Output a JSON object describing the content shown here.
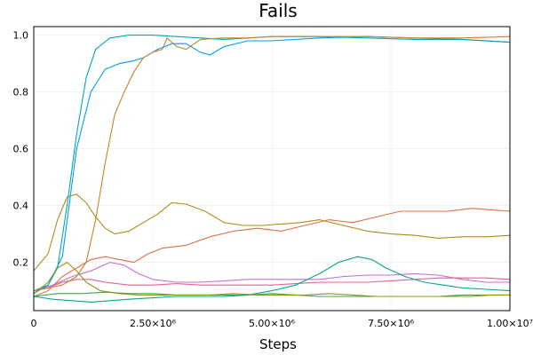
{
  "chart_data": {
    "type": "line",
    "title": "Fails",
    "xlabel": "Steps",
    "ylabel": "",
    "xlim": [
      0,
      10000000
    ],
    "ylim": [
      0.03,
      1.03
    ],
    "grid": true,
    "legend": "none",
    "x_ticks": [
      {
        "value": 0,
        "label": "0"
      },
      {
        "value": 2500000,
        "label": "2.50×10⁶"
      },
      {
        "value": 5000000,
        "label": "5.00×10⁶"
      },
      {
        "value": 7500000,
        "label": "7.50×10⁶"
      },
      {
        "value": 10000000,
        "label": "1.00×10⁷"
      }
    ],
    "y_ticks": [
      {
        "value": 0.2,
        "label": "0.2"
      },
      {
        "value": 0.4,
        "label": "0.4"
      },
      {
        "value": 0.6,
        "label": "0.6"
      },
      {
        "value": 0.8,
        "label": "0.8"
      },
      {
        "value": 1.0,
        "label": "1.0"
      }
    ],
    "series": [
      {
        "color": "#009AFA",
        "points": [
          [
            0,
            0.1
          ],
          [
            300000,
            0.12
          ],
          [
            600000,
            0.22
          ],
          [
            900000,
            0.6
          ],
          [
            1200000,
            0.8
          ],
          [
            1500000,
            0.88
          ],
          [
            1800000,
            0.9
          ],
          [
            2100000,
            0.91
          ],
          [
            2300000,
            0.92
          ],
          [
            2600000,
            0.95
          ],
          [
            2900000,
            0.97
          ],
          [
            3200000,
            0.97
          ],
          [
            3500000,
            0.94
          ],
          [
            3700000,
            0.93
          ],
          [
            4000000,
            0.96
          ],
          [
            4500000,
            0.98
          ],
          [
            5000000,
            0.98
          ],
          [
            6000000,
            0.99
          ],
          [
            7000000,
            0.995
          ],
          [
            8000000,
            0.99
          ],
          [
            9000000,
            0.985
          ],
          [
            10000000,
            0.975
          ]
        ]
      },
      {
        "color": "#E36F47",
        "points": [
          [
            0,
            0.08
          ],
          [
            300000,
            0.1
          ],
          [
            600000,
            0.15
          ],
          [
            900000,
            0.18
          ],
          [
            1200000,
            0.21
          ],
          [
            1500000,
            0.22
          ],
          [
            1800000,
            0.21
          ],
          [
            2100000,
            0.2
          ],
          [
            2400000,
            0.23
          ],
          [
            2700000,
            0.25
          ],
          [
            3200000,
            0.26
          ],
          [
            3700000,
            0.29
          ],
          [
            4200000,
            0.31
          ],
          [
            4700000,
            0.32
          ],
          [
            5200000,
            0.31
          ],
          [
            5700000,
            0.33
          ],
          [
            6200000,
            0.35
          ],
          [
            6700000,
            0.34
          ],
          [
            7200000,
            0.36
          ],
          [
            7700000,
            0.38
          ],
          [
            8200000,
            0.38
          ],
          [
            8700000,
            0.38
          ],
          [
            9200000,
            0.39
          ],
          [
            9600000,
            0.385
          ],
          [
            10000000,
            0.38
          ]
        ]
      },
      {
        "color": "#3EA44E",
        "points": [
          [
            0,
            0.08
          ],
          [
            500000,
            0.09
          ],
          [
            1000000,
            0.09
          ],
          [
            1500000,
            0.095
          ],
          [
            2000000,
            0.09
          ],
          [
            2500000,
            0.09
          ],
          [
            3000000,
            0.085
          ],
          [
            3500000,
            0.085
          ],
          [
            4000000,
            0.085
          ],
          [
            4500000,
            0.085
          ],
          [
            5000000,
            0.09
          ],
          [
            5500000,
            0.085
          ],
          [
            6000000,
            0.08
          ],
          [
            6500000,
            0.08
          ],
          [
            7000000,
            0.08
          ],
          [
            7500000,
            0.08
          ],
          [
            8000000,
            0.08
          ],
          [
            8500000,
            0.08
          ],
          [
            9000000,
            0.085
          ],
          [
            9500000,
            0.085
          ],
          [
            10000000,
            0.085
          ]
        ]
      },
      {
        "color": "#C271D2",
        "points": [
          [
            0,
            0.1
          ],
          [
            400000,
            0.12
          ],
          [
            800000,
            0.15
          ],
          [
            1200000,
            0.17
          ],
          [
            1600000,
            0.2
          ],
          [
            1900000,
            0.19
          ],
          [
            2200000,
            0.16
          ],
          [
            2500000,
            0.14
          ],
          [
            3000000,
            0.13
          ],
          [
            3500000,
            0.13
          ],
          [
            4000000,
            0.135
          ],
          [
            4500000,
            0.14
          ],
          [
            5000000,
            0.14
          ],
          [
            5500000,
            0.14
          ],
          [
            6000000,
            0.14
          ],
          [
            6500000,
            0.15
          ],
          [
            7000000,
            0.155
          ],
          [
            7500000,
            0.155
          ],
          [
            8000000,
            0.16
          ],
          [
            8500000,
            0.155
          ],
          [
            9000000,
            0.14
          ],
          [
            9500000,
            0.13
          ],
          [
            10000000,
            0.13
          ]
        ]
      },
      {
        "color": "#AC8D18",
        "points": [
          [
            0,
            0.17
          ],
          [
            300000,
            0.23
          ],
          [
            500000,
            0.35
          ],
          [
            700000,
            0.43
          ],
          [
            900000,
            0.44
          ],
          [
            1100000,
            0.41
          ],
          [
            1300000,
            0.36
          ],
          [
            1500000,
            0.32
          ],
          [
            1700000,
            0.3
          ],
          [
            2000000,
            0.31
          ],
          [
            2300000,
            0.34
          ],
          [
            2600000,
            0.37
          ],
          [
            2900000,
            0.41
          ],
          [
            3200000,
            0.405
          ],
          [
            3600000,
            0.38
          ],
          [
            4000000,
            0.34
          ],
          [
            4400000,
            0.33
          ],
          [
            4800000,
            0.33
          ],
          [
            5200000,
            0.335
          ],
          [
            5600000,
            0.34
          ],
          [
            6000000,
            0.35
          ],
          [
            6500000,
            0.33
          ],
          [
            7000000,
            0.31
          ],
          [
            7500000,
            0.3
          ],
          [
            8000000,
            0.295
          ],
          [
            8500000,
            0.285
          ],
          [
            9000000,
            0.29
          ],
          [
            9500000,
            0.29
          ],
          [
            10000000,
            0.295
          ]
        ]
      },
      {
        "color": "#00A9AD",
        "points": [
          [
            0,
            0.09
          ],
          [
            300000,
            0.12
          ],
          [
            500000,
            0.18
          ],
          [
            700000,
            0.4
          ],
          [
            900000,
            0.65
          ],
          [
            1100000,
            0.85
          ],
          [
            1300000,
            0.95
          ],
          [
            1600000,
            0.99
          ],
          [
            2000000,
            1.0
          ],
          [
            2500000,
            1.0
          ],
          [
            3000000,
            0.995
          ],
          [
            3500000,
            0.99
          ],
          [
            4000000,
            0.985
          ],
          [
            4500000,
            0.99
          ],
          [
            5000000,
            0.995
          ],
          [
            6000000,
            0.995
          ],
          [
            7000000,
            0.99
          ],
          [
            8000000,
            0.985
          ],
          [
            9000000,
            0.985
          ],
          [
            10000000,
            0.975
          ]
        ]
      },
      {
        "color": "#ED5E93",
        "points": [
          [
            0,
            0.1
          ],
          [
            300000,
            0.11
          ],
          [
            600000,
            0.13
          ],
          [
            900000,
            0.14
          ],
          [
            1200000,
            0.14
          ],
          [
            1500000,
            0.13
          ],
          [
            2000000,
            0.12
          ],
          [
            2500000,
            0.12
          ],
          [
            3000000,
            0.125
          ],
          [
            3500000,
            0.12
          ],
          [
            4000000,
            0.12
          ],
          [
            4500000,
            0.12
          ],
          [
            5000000,
            0.12
          ],
          [
            5500000,
            0.125
          ],
          [
            6000000,
            0.13
          ],
          [
            6500000,
            0.13
          ],
          [
            7000000,
            0.13
          ],
          [
            7500000,
            0.135
          ],
          [
            8000000,
            0.14
          ],
          [
            8500000,
            0.145
          ],
          [
            9000000,
            0.145
          ],
          [
            9500000,
            0.145
          ],
          [
            10000000,
            0.14
          ]
        ]
      },
      {
        "color": "#C68225",
        "points": [
          [
            0,
            0.1
          ],
          [
            300000,
            0.11
          ],
          [
            600000,
            0.12
          ],
          [
            900000,
            0.15
          ],
          [
            1100000,
            0.2
          ],
          [
            1300000,
            0.35
          ],
          [
            1500000,
            0.55
          ],
          [
            1700000,
            0.72
          ],
          [
            1900000,
            0.8
          ],
          [
            2100000,
            0.87
          ],
          [
            2300000,
            0.92
          ],
          [
            2500000,
            0.94
          ],
          [
            2700000,
            0.95
          ],
          [
            2800000,
            0.99
          ],
          [
            3000000,
            0.96
          ],
          [
            3200000,
            0.95
          ],
          [
            3500000,
            0.985
          ],
          [
            4000000,
            0.99
          ],
          [
            4500000,
            0.99
          ],
          [
            5000000,
            0.995
          ],
          [
            6000000,
            0.995
          ],
          [
            7000000,
            0.995
          ],
          [
            8000000,
            0.99
          ],
          [
            9000000,
            0.99
          ],
          [
            10000000,
            0.995
          ]
        ]
      },
      {
        "color": "#00A98F",
        "points": [
          [
            0,
            0.08
          ],
          [
            400000,
            0.07
          ],
          [
            800000,
            0.065
          ],
          [
            1200000,
            0.06
          ],
          [
            1600000,
            0.065
          ],
          [
            2000000,
            0.07
          ],
          [
            2500000,
            0.075
          ],
          [
            3000000,
            0.08
          ],
          [
            3500000,
            0.08
          ],
          [
            4000000,
            0.08
          ],
          [
            4500000,
            0.085
          ],
          [
            5000000,
            0.1
          ],
          [
            5500000,
            0.12
          ],
          [
            6000000,
            0.16
          ],
          [
            6400000,
            0.2
          ],
          [
            6800000,
            0.22
          ],
          [
            7100000,
            0.21
          ],
          [
            7400000,
            0.18
          ],
          [
            7800000,
            0.15
          ],
          [
            8200000,
            0.13
          ],
          [
            8600000,
            0.12
          ],
          [
            9000000,
            0.11
          ],
          [
            9500000,
            0.105
          ],
          [
            10000000,
            0.1
          ]
        ]
      },
      {
        "color": "#8E971D",
        "points": [
          [
            0,
            0.09
          ],
          [
            300000,
            0.13
          ],
          [
            500000,
            0.18
          ],
          [
            700000,
            0.2
          ],
          [
            900000,
            0.17
          ],
          [
            1100000,
            0.13
          ],
          [
            1400000,
            0.1
          ],
          [
            1800000,
            0.09
          ],
          [
            2200000,
            0.085
          ],
          [
            2700000,
            0.085
          ],
          [
            3200000,
            0.085
          ],
          [
            3700000,
            0.085
          ],
          [
            4200000,
            0.09
          ],
          [
            4700000,
            0.085
          ],
          [
            5200000,
            0.085
          ],
          [
            5700000,
            0.085
          ],
          [
            6200000,
            0.09
          ],
          [
            6700000,
            0.085
          ],
          [
            7200000,
            0.08
          ],
          [
            7700000,
            0.08
          ],
          [
            8200000,
            0.08
          ],
          [
            8700000,
            0.08
          ],
          [
            9200000,
            0.08
          ],
          [
            9600000,
            0.085
          ],
          [
            10000000,
            0.085
          ]
        ]
      }
    ]
  }
}
